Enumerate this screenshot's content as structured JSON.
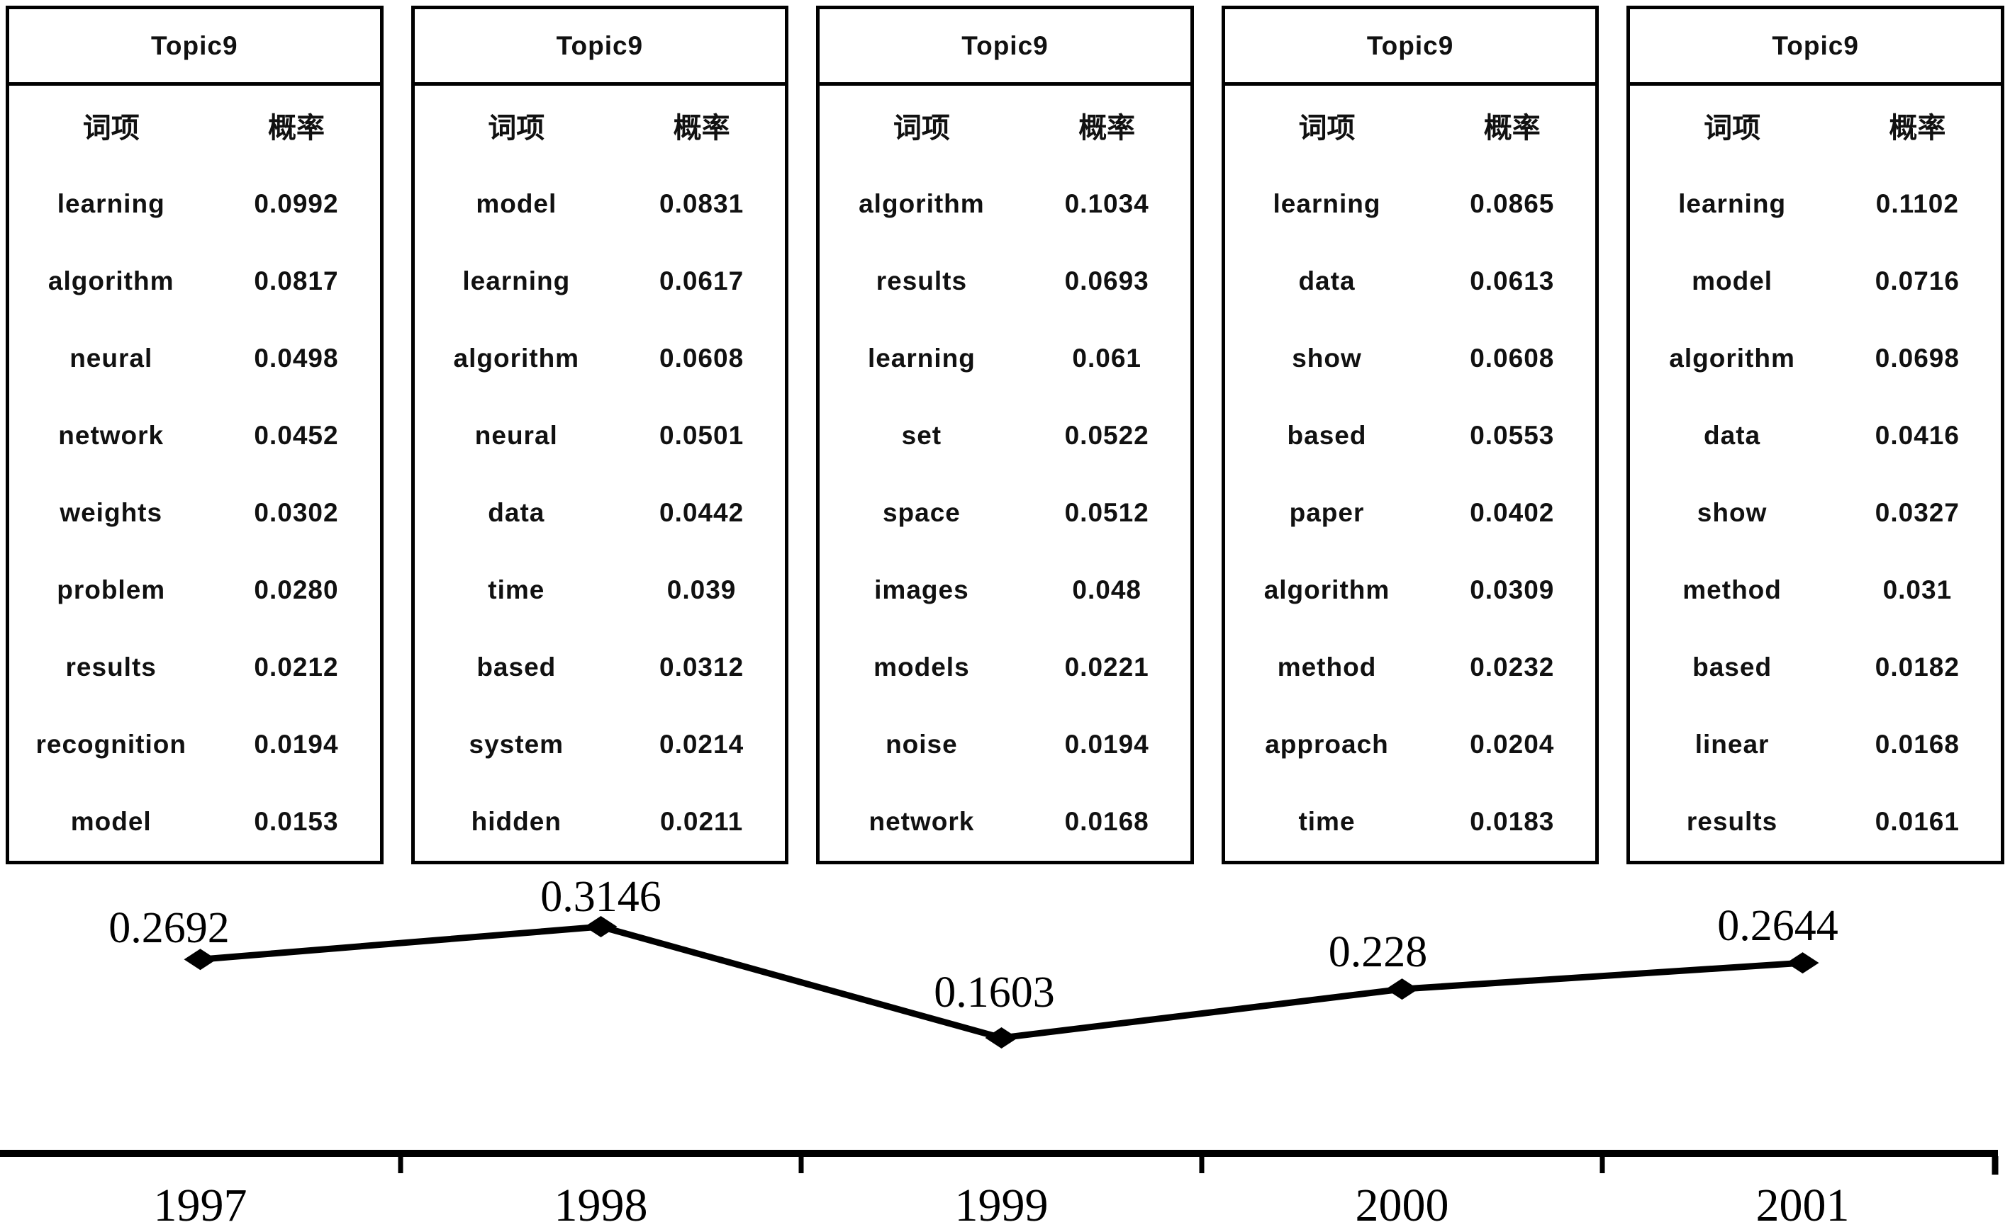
{
  "figure": {
    "background_color": "#ffffff",
    "foreground_color": "#000000"
  },
  "tables": [
    {
      "title": "Topic9",
      "columns": [
        "词项",
        "概率"
      ],
      "rows": [
        [
          "learning",
          "0.0992"
        ],
        [
          "algorithm",
          "0.0817"
        ],
        [
          "neural",
          "0.0498"
        ],
        [
          "network",
          "0.0452"
        ],
        [
          "weights",
          "0.0302"
        ],
        [
          "problem",
          "0.0280"
        ],
        [
          "results",
          "0.0212"
        ],
        [
          "recognition",
          "0.0194"
        ],
        [
          "model",
          "0.0153"
        ]
      ]
    },
    {
      "title": "Topic9",
      "columns": [
        "词项",
        "概率"
      ],
      "rows": [
        [
          "model",
          "0.0831"
        ],
        [
          "learning",
          "0.0617"
        ],
        [
          "algorithm",
          "0.0608"
        ],
        [
          "neural",
          "0.0501"
        ],
        [
          "data",
          "0.0442"
        ],
        [
          "time",
          "0.039"
        ],
        [
          "based",
          "0.0312"
        ],
        [
          "system",
          "0.0214"
        ],
        [
          "hidden",
          "0.0211"
        ]
      ]
    },
    {
      "title": "Topic9",
      "columns": [
        "词项",
        "概率"
      ],
      "rows": [
        [
          "algorithm",
          "0.1034"
        ],
        [
          "results",
          "0.0693"
        ],
        [
          "learning",
          "0.061"
        ],
        [
          "set",
          "0.0522"
        ],
        [
          "space",
          "0.0512"
        ],
        [
          "images",
          "0.048"
        ],
        [
          "models",
          "0.0221"
        ],
        [
          "noise",
          "0.0194"
        ],
        [
          "network",
          "0.0168"
        ]
      ]
    },
    {
      "title": "Topic9",
      "columns": [
        "词项",
        "概率"
      ],
      "rows": [
        [
          "learning",
          "0.0865"
        ],
        [
          "data",
          "0.0613"
        ],
        [
          "show",
          "0.0608"
        ],
        [
          "based",
          "0.0553"
        ],
        [
          "paper",
          "0.0402"
        ],
        [
          "algorithm",
          "0.0309"
        ],
        [
          "method",
          "0.0232"
        ],
        [
          "approach",
          "0.0204"
        ],
        [
          "time",
          "0.0183"
        ]
      ]
    },
    {
      "title": "Topic9",
      "columns": [
        "词项",
        "概率"
      ],
      "rows": [
        [
          "learning",
          "0.1102"
        ],
        [
          "model",
          "0.0716"
        ],
        [
          "algorithm",
          "0.0698"
        ],
        [
          "data",
          "0.0416"
        ],
        [
          "show",
          "0.0327"
        ],
        [
          "method",
          "0.031"
        ],
        [
          "based",
          "0.0182"
        ],
        [
          "linear",
          "0.0168"
        ],
        [
          "results",
          "0.0161"
        ]
      ]
    }
  ],
  "chart_data": {
    "type": "line",
    "title": "",
    "xlabel": "",
    "ylabel": "",
    "categories": [
      "1997",
      "1998",
      "1999",
      "2000",
      "2001"
    ],
    "values": [
      0.2692,
      0.3146,
      0.1603,
      0.228,
      0.2644
    ],
    "point_labels": [
      "0.2692",
      "0.3146",
      "0.1603",
      "0.228",
      "0.2644"
    ],
    "ylim": [
      0,
      0.4
    ],
    "grid": false,
    "legend": "none",
    "line_color": "#000000",
    "marker": "diamond",
    "axis_color": "#000000"
  }
}
